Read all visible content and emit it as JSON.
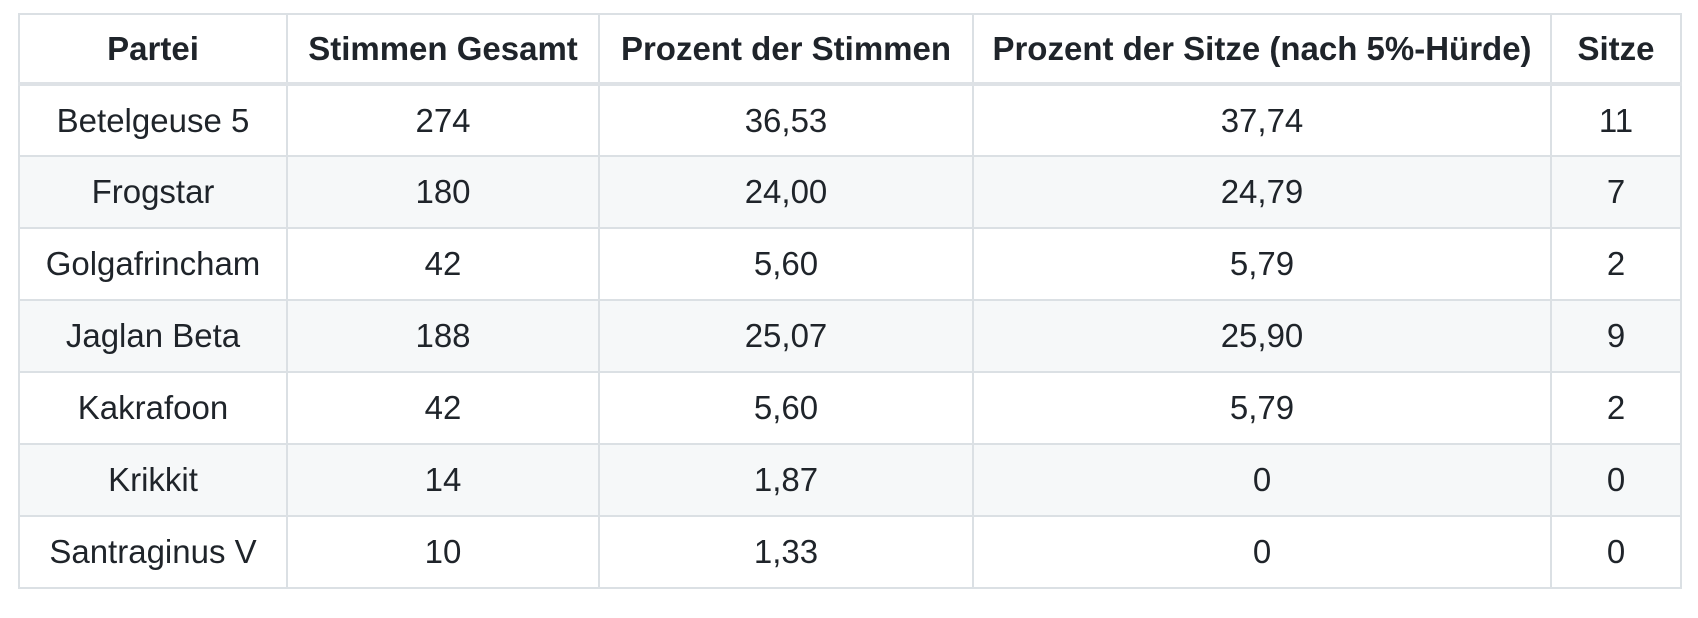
{
  "table": {
    "headers": [
      "Partei",
      "Stimmen Gesamt",
      "Prozent der Stimmen",
      "Prozent der Sitze (nach 5%-Hürde)",
      "Sitze"
    ],
    "rows": [
      [
        "Betelgeuse 5",
        "274",
        "36,53",
        "37,74",
        "11"
      ],
      [
        "Frogstar",
        "180",
        "24,00",
        "24,79",
        "7"
      ],
      [
        "Golgafrincham",
        "42",
        "5,60",
        "5,79",
        "2"
      ],
      [
        "Jaglan Beta",
        "188",
        "25,07",
        "25,90",
        "9"
      ],
      [
        "Kakrafoon",
        "42",
        "5,60",
        "5,79",
        "2"
      ],
      [
        "Krikkit",
        "14",
        "1,87",
        "0",
        "0"
      ],
      [
        "Santraginus V",
        "10",
        "1,33",
        "0",
        "0"
      ]
    ]
  },
  "chart_data": {
    "type": "table",
    "columns": [
      "Partei",
      "Stimmen Gesamt",
      "Prozent der Stimmen",
      "Prozent der Sitze (nach 5%-Hürde)",
      "Sitze"
    ],
    "rows": [
      {
        "partei": "Betelgeuse 5",
        "stimmen_gesamt": 274,
        "prozent_der_stimmen": "36,53",
        "prozent_der_sitze": "37,74",
        "sitze": 11
      },
      {
        "partei": "Frogstar",
        "stimmen_gesamt": 180,
        "prozent_der_stimmen": "24,00",
        "prozent_der_sitze": "24,79",
        "sitze": 7
      },
      {
        "partei": "Golgafrincham",
        "stimmen_gesamt": 42,
        "prozent_der_stimmen": "5,60",
        "prozent_der_sitze": "5,79",
        "sitze": 2
      },
      {
        "partei": "Jaglan Beta",
        "stimmen_gesamt": 188,
        "prozent_der_stimmen": "25,07",
        "prozent_der_sitze": "25,90",
        "sitze": 9
      },
      {
        "partei": "Kakrafoon",
        "stimmen_gesamt": 42,
        "prozent_der_stimmen": "5,60",
        "prozent_der_sitze": "5,79",
        "sitze": 2
      },
      {
        "partei": "Krikkit",
        "stimmen_gesamt": 14,
        "prozent_der_stimmen": "1,87",
        "prozent_der_sitze": "0",
        "sitze": 0
      },
      {
        "partei": "Santraginus V",
        "stimmen_gesamt": 10,
        "prozent_der_stimmen": "1,33",
        "prozent_der_sitze": "0",
        "sitze": 0
      }
    ]
  },
  "colors": {
    "stripe": "#f6f8f9",
    "border": "#dbe0e4",
    "header_border": "#dee2e6",
    "text": "#1f242a",
    "background": "#ffffff"
  }
}
